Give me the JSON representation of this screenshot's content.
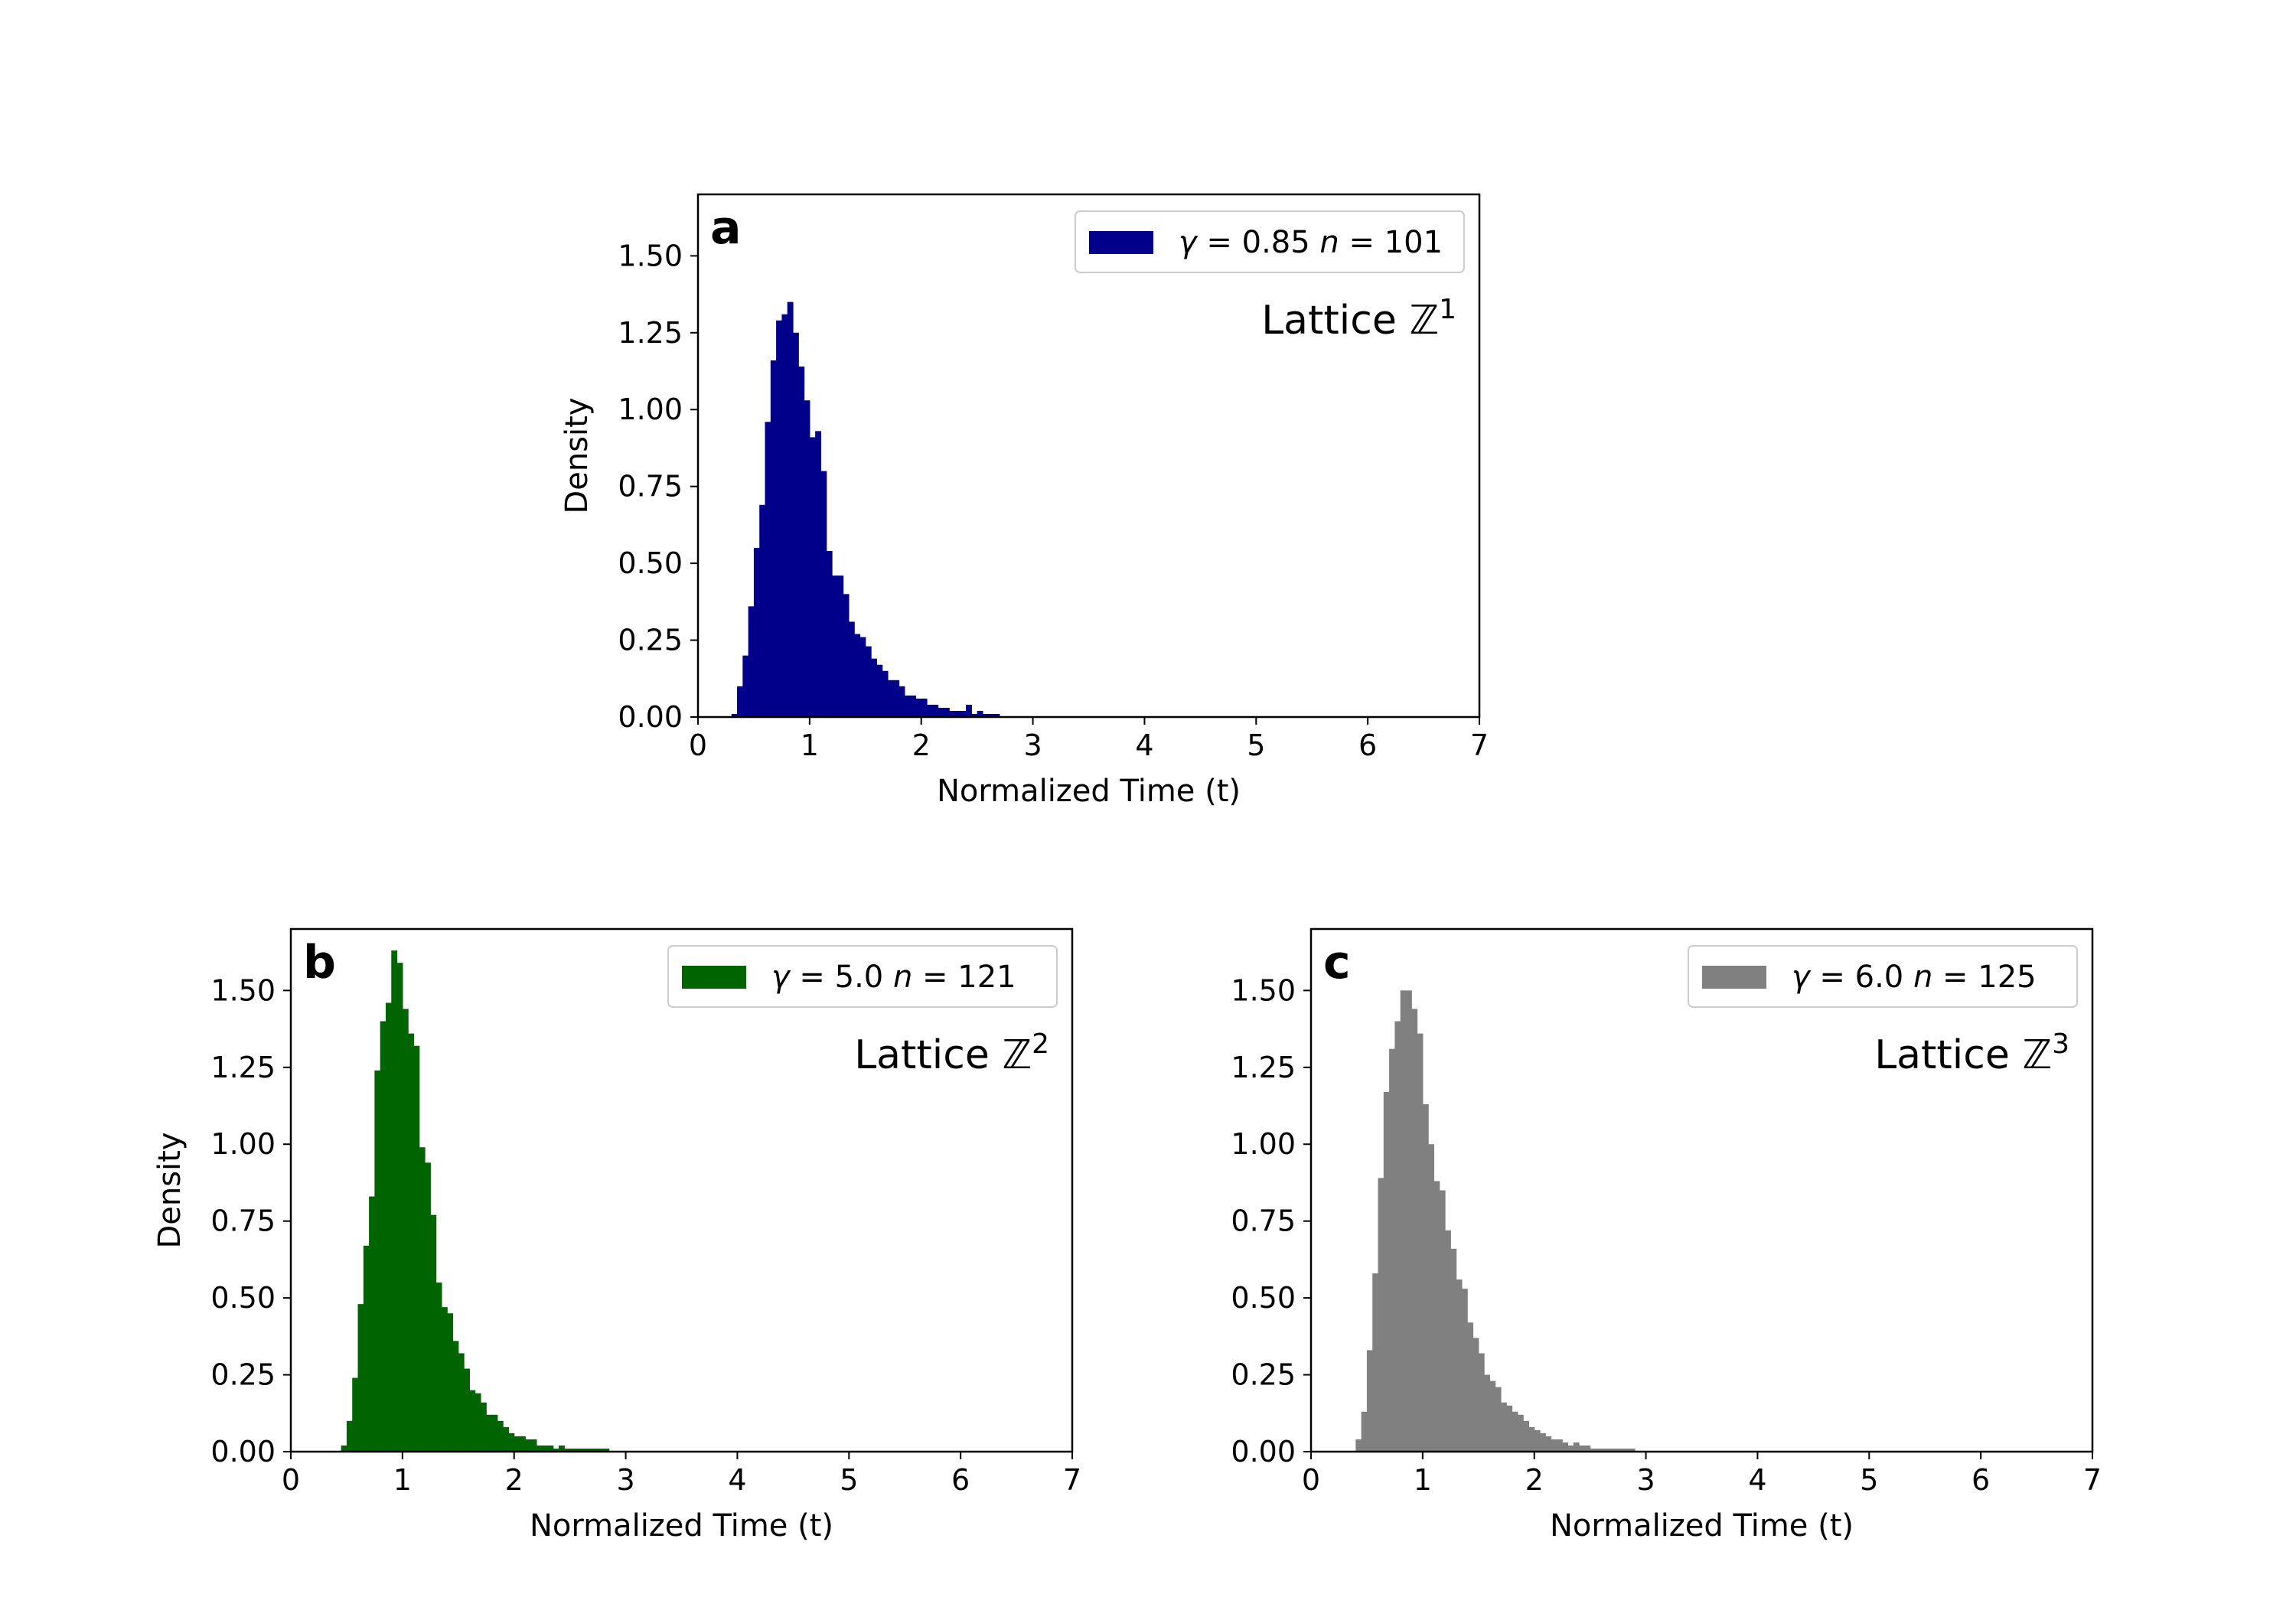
{
  "chart_data": [
    {
      "type": "bar",
      "panel": "a",
      "lattice": {
        "text": "Lattice ",
        "symbol": "ℤ",
        "exp": "1"
      },
      "legend": {
        "gamma": "0.85",
        "n": "101",
        "color": "#00008b"
      },
      "xlabel": "Normalized Time (t)",
      "ylabel": "Density",
      "xlim": [
        0,
        7
      ],
      "ylim": [
        0,
        1.7
      ],
      "xticks": [
        "0",
        "1",
        "2",
        "3",
        "4",
        "5",
        "6",
        "7"
      ],
      "yticks": [
        "0.00",
        "0.25",
        "0.50",
        "0.75",
        "1.00",
        "1.25",
        "1.50"
      ],
      "grid": false,
      "legend_placement": "top-right",
      "bin_width": 0.05,
      "x": [
        0.3,
        0.35,
        0.4,
        0.45,
        0.5,
        0.55,
        0.6,
        0.65,
        0.7,
        0.75,
        0.8,
        0.85,
        0.9,
        0.95,
        1.0,
        1.05,
        1.1,
        1.15,
        1.2,
        1.25,
        1.3,
        1.35,
        1.4,
        1.45,
        1.5,
        1.55,
        1.6,
        1.65,
        1.7,
        1.75,
        1.8,
        1.85,
        1.9,
        1.95,
        2.0,
        2.05,
        2.1,
        2.15,
        2.2,
        2.25,
        2.3,
        2.35,
        2.4,
        2.45,
        2.5,
        2.55,
        2.6,
        2.65
      ],
      "values": [
        0.01,
        0.1,
        0.2,
        0.36,
        0.55,
        0.69,
        0.96,
        1.16,
        1.29,
        1.31,
        1.35,
        1.25,
        1.14,
        1.03,
        0.91,
        0.93,
        0.8,
        0.54,
        0.46,
        0.46,
        0.4,
        0.31,
        0.27,
        0.26,
        0.23,
        0.19,
        0.17,
        0.15,
        0.12,
        0.12,
        0.1,
        0.07,
        0.07,
        0.06,
        0.06,
        0.04,
        0.04,
        0.03,
        0.03,
        0.02,
        0.02,
        0.02,
        0.04,
        0.01,
        0.02,
        0.01,
        0.01,
        0.01
      ]
    },
    {
      "type": "bar",
      "panel": "b",
      "lattice": {
        "text": "Lattice ",
        "symbol": "ℤ",
        "exp": "2"
      },
      "legend": {
        "gamma": "5.0",
        "n": "121",
        "color": "#006400"
      },
      "xlabel": "Normalized Time (t)",
      "ylabel": "Density",
      "xlim": [
        0,
        7
      ],
      "ylim": [
        0,
        1.7
      ],
      "xticks": [
        "0",
        "1",
        "2",
        "3",
        "4",
        "5",
        "6",
        "7"
      ],
      "yticks": [
        "0.00",
        "0.25",
        "0.50",
        "0.75",
        "1.00",
        "1.25",
        "1.50"
      ],
      "grid": false,
      "legend_placement": "top-right",
      "bin_width": 0.05,
      "x": [
        0.45,
        0.5,
        0.55,
        0.6,
        0.65,
        0.7,
        0.75,
        0.8,
        0.85,
        0.9,
        0.95,
        1.0,
        1.05,
        1.1,
        1.15,
        1.2,
        1.25,
        1.3,
        1.35,
        1.4,
        1.45,
        1.5,
        1.55,
        1.6,
        1.65,
        1.7,
        1.75,
        1.8,
        1.85,
        1.9,
        1.95,
        2.0,
        2.05,
        2.1,
        2.15,
        2.2,
        2.25,
        2.3,
        2.35,
        2.4,
        2.45,
        2.5,
        2.55,
        2.6,
        2.65,
        2.7,
        2.75,
        2.8
      ],
      "values": [
        0.02,
        0.1,
        0.24,
        0.48,
        0.67,
        0.83,
        1.24,
        1.4,
        1.46,
        1.63,
        1.59,
        1.44,
        1.36,
        1.32,
        0.99,
        0.94,
        0.77,
        0.55,
        0.47,
        0.45,
        0.36,
        0.32,
        0.27,
        0.2,
        0.19,
        0.16,
        0.12,
        0.12,
        0.1,
        0.08,
        0.06,
        0.05,
        0.05,
        0.04,
        0.04,
        0.02,
        0.02,
        0.02,
        0.01,
        0.02,
        0.01,
        0.01,
        0.01,
        0.01,
        0.01,
        0.01,
        0.01,
        0.01
      ]
    },
    {
      "type": "bar",
      "panel": "c",
      "lattice": {
        "text": "Lattice ",
        "symbol": "ℤ",
        "exp": "3"
      },
      "legend": {
        "gamma": "6.0",
        "n": "125",
        "color": "#808080"
      },
      "xlabel": "Normalized Time (t)",
      "ylabel": "",
      "xlim": [
        0,
        7
      ],
      "ylim": [
        0,
        1.7
      ],
      "xticks": [
        "0",
        "1",
        "2",
        "3",
        "4",
        "5",
        "6",
        "7"
      ],
      "yticks": [
        "0.00",
        "0.25",
        "0.50",
        "0.75",
        "1.00",
        "1.25",
        "1.50"
      ],
      "grid": false,
      "legend_placement": "top-right",
      "bin_width": 0.05,
      "x": [
        0.4,
        0.45,
        0.5,
        0.55,
        0.6,
        0.65,
        0.7,
        0.75,
        0.8,
        0.85,
        0.9,
        0.95,
        1.0,
        1.05,
        1.1,
        1.15,
        1.2,
        1.25,
        1.3,
        1.35,
        1.4,
        1.45,
        1.5,
        1.55,
        1.6,
        1.65,
        1.7,
        1.75,
        1.8,
        1.85,
        1.9,
        1.95,
        2.0,
        2.05,
        2.1,
        2.15,
        2.2,
        2.25,
        2.3,
        2.35,
        2.4,
        2.45,
        2.5,
        2.55,
        2.6,
        2.65,
        2.7,
        2.75,
        2.8,
        2.85
      ],
      "values": [
        0.04,
        0.13,
        0.33,
        0.58,
        0.89,
        1.17,
        1.31,
        1.4,
        1.5,
        1.5,
        1.44,
        1.36,
        1.13,
        1.0,
        0.88,
        0.85,
        0.72,
        0.66,
        0.56,
        0.53,
        0.42,
        0.37,
        0.32,
        0.25,
        0.23,
        0.21,
        0.16,
        0.15,
        0.13,
        0.12,
        0.1,
        0.08,
        0.07,
        0.06,
        0.05,
        0.04,
        0.04,
        0.03,
        0.02,
        0.03,
        0.02,
        0.02,
        0.01,
        0.01,
        0.01,
        0.01,
        0.01,
        0.01,
        0.01,
        0.01
      ]
    }
  ]
}
